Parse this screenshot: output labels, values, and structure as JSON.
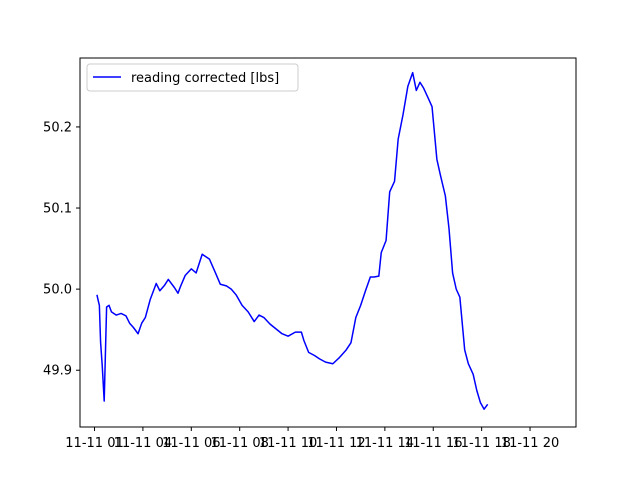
{
  "chart_data": {
    "type": "line",
    "title": "",
    "xlabel": "",
    "ylabel": "",
    "xlim": [
      0.4,
      20.9
    ],
    "ylim": [
      49.83,
      50.285
    ],
    "grid": false,
    "legend_position": "top-left",
    "x_ticks": [
      {
        "value": 1.0,
        "label": "11-11 01"
      },
      {
        "value": 3.0,
        "label": "11-11 04"
      },
      {
        "value": 5.0,
        "label": "11-11 06"
      },
      {
        "value": 7.0,
        "label": "11-11 08"
      },
      {
        "value": 9.0,
        "label": "11-11 10"
      },
      {
        "value": 11.0,
        "label": "11-11 12"
      },
      {
        "value": 13.0,
        "label": "11-11 14"
      },
      {
        "value": 15.0,
        "label": "11-11 16"
      },
      {
        "value": 17.0,
        "label": "11-11 18"
      },
      {
        "value": 19.0,
        "label": "11-11 20"
      }
    ],
    "y_ticks": [
      49.9,
      50.0,
      50.1,
      50.2
    ],
    "series": [
      {
        "name": "reading corrected [lbs]",
        "color": "#0000ff",
        "points": [
          [
            1.1,
            49.993
          ],
          [
            1.16,
            49.985
          ],
          [
            1.2,
            49.98
          ],
          [
            1.25,
            49.935
          ],
          [
            1.32,
            49.905
          ],
          [
            1.4,
            49.862
          ],
          [
            1.45,
            49.92
          ],
          [
            1.5,
            49.978
          ],
          [
            1.6,
            49.98
          ],
          [
            1.7,
            49.972
          ],
          [
            1.9,
            49.968
          ],
          [
            2.1,
            49.97
          ],
          [
            2.3,
            49.967
          ],
          [
            2.45,
            49.958
          ],
          [
            2.6,
            49.953
          ],
          [
            2.8,
            49.945
          ],
          [
            2.95,
            49.958
          ],
          [
            3.1,
            49.965
          ],
          [
            3.3,
            49.987
          ],
          [
            3.55,
            50.007
          ],
          [
            3.7,
            49.998
          ],
          [
            3.9,
            50.005
          ],
          [
            4.05,
            50.012
          ],
          [
            4.3,
            50.002
          ],
          [
            4.45,
            49.995
          ],
          [
            4.55,
            50.003
          ],
          [
            4.75,
            50.017
          ],
          [
            5.0,
            50.025
          ],
          [
            5.2,
            50.02
          ],
          [
            5.45,
            50.043
          ],
          [
            5.75,
            50.037
          ],
          [
            6.0,
            50.02
          ],
          [
            6.2,
            50.006
          ],
          [
            6.45,
            50.004
          ],
          [
            6.65,
            50.0
          ],
          [
            6.85,
            49.993
          ],
          [
            7.1,
            49.98
          ],
          [
            7.35,
            49.972
          ],
          [
            7.6,
            49.96
          ],
          [
            7.8,
            49.968
          ],
          [
            8.0,
            49.965
          ],
          [
            8.25,
            49.957
          ],
          [
            8.5,
            49.951
          ],
          [
            8.75,
            49.945
          ],
          [
            9.0,
            49.942
          ],
          [
            9.3,
            49.947
          ],
          [
            9.55,
            49.947
          ],
          [
            9.65,
            49.937
          ],
          [
            9.85,
            49.922
          ],
          [
            10.1,
            49.918
          ],
          [
            10.3,
            49.914
          ],
          [
            10.55,
            49.91
          ],
          [
            10.85,
            49.908
          ],
          [
            11.1,
            49.915
          ],
          [
            11.4,
            49.925
          ],
          [
            11.6,
            49.934
          ],
          [
            11.8,
            49.965
          ],
          [
            12.0,
            49.98
          ],
          [
            12.2,
            49.998
          ],
          [
            12.4,
            50.015
          ],
          [
            12.55,
            50.015
          ],
          [
            12.75,
            50.016
          ],
          [
            12.85,
            50.045
          ],
          [
            13.05,
            50.06
          ],
          [
            13.2,
            50.12
          ],
          [
            13.4,
            50.133
          ],
          [
            13.55,
            50.185
          ],
          [
            13.75,
            50.215
          ],
          [
            13.95,
            50.25
          ],
          [
            14.15,
            50.267
          ],
          [
            14.3,
            50.245
          ],
          [
            14.45,
            50.255
          ],
          [
            14.6,
            50.248
          ],
          [
            14.8,
            50.235
          ],
          [
            14.95,
            50.225
          ],
          [
            15.15,
            50.16
          ],
          [
            15.3,
            50.14
          ],
          [
            15.5,
            50.115
          ],
          [
            15.65,
            50.075
          ],
          [
            15.8,
            50.02
          ],
          [
            15.95,
            50.0
          ],
          [
            16.1,
            49.99
          ],
          [
            16.3,
            49.925
          ],
          [
            16.45,
            49.908
          ],
          [
            16.65,
            49.895
          ],
          [
            16.8,
            49.875
          ],
          [
            16.95,
            49.86
          ],
          [
            17.1,
            49.852
          ],
          [
            17.25,
            49.858
          ]
        ]
      }
    ]
  }
}
